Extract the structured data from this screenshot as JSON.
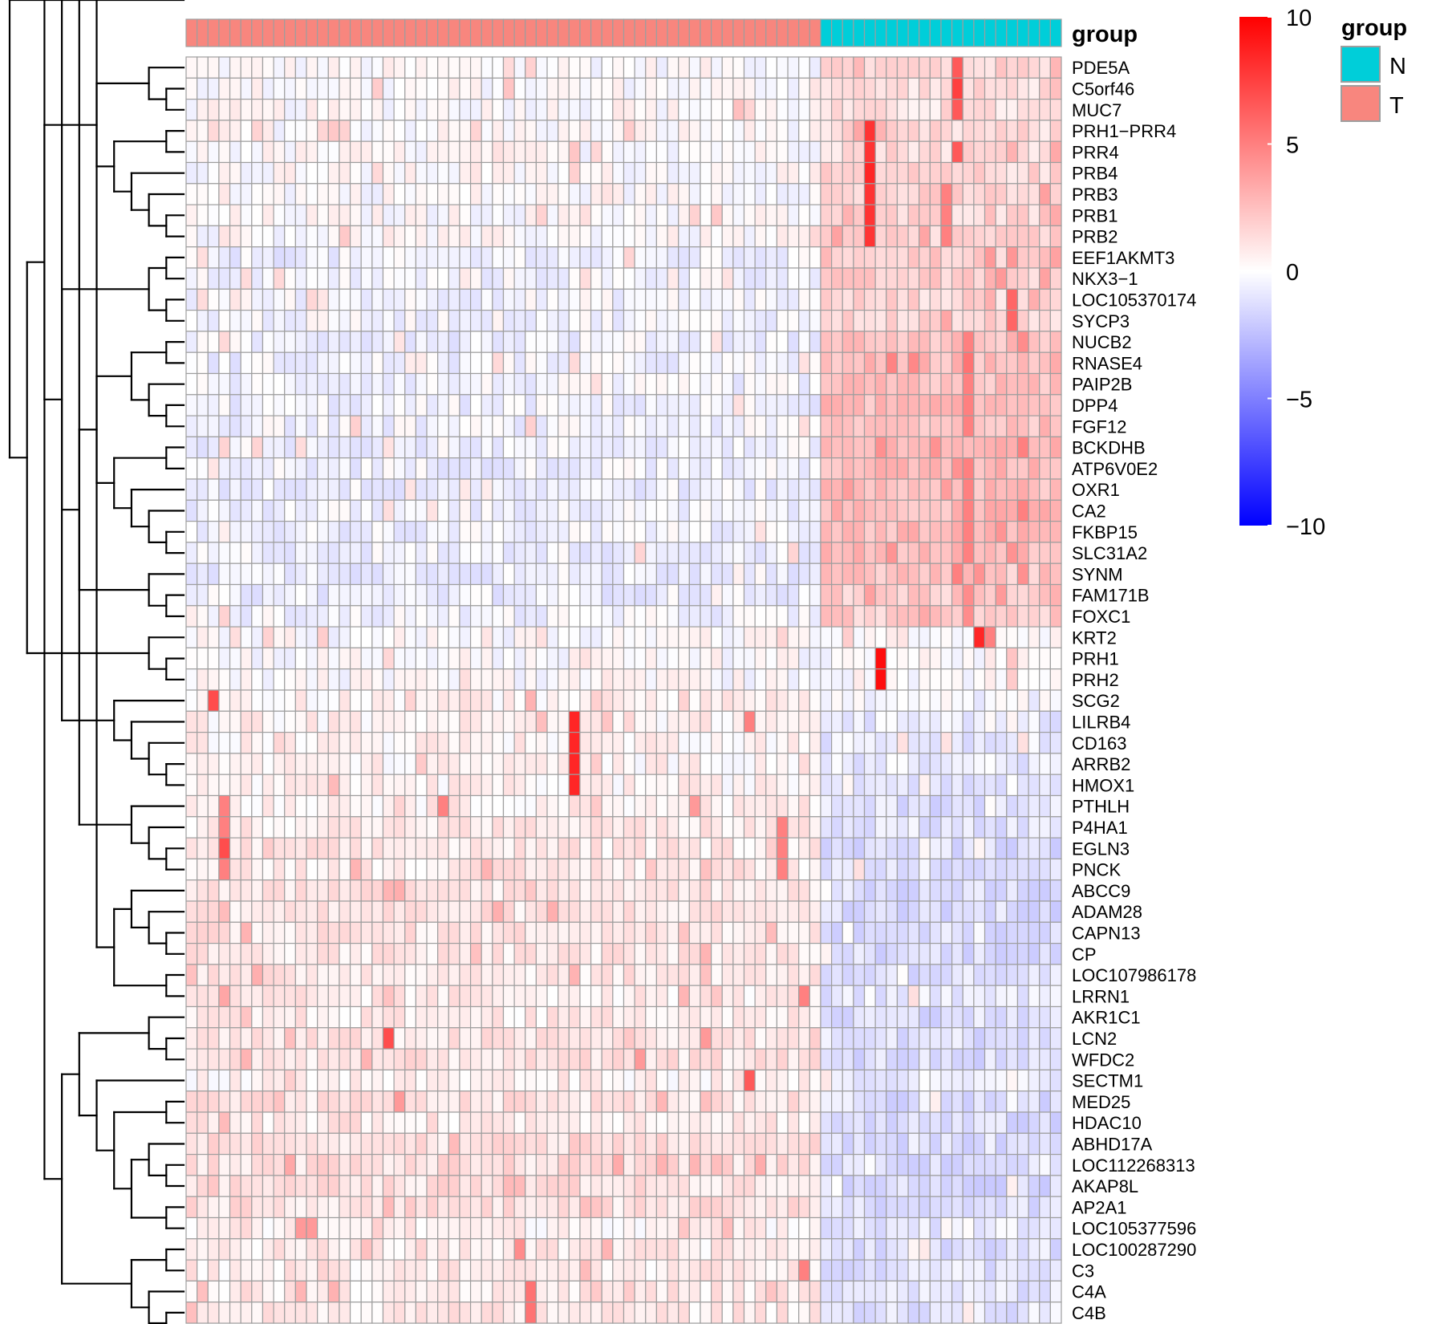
{
  "chart_data": {
    "type": "heatmap",
    "annotation_title": "group",
    "legend_title": "group",
    "groups": [
      {
        "name": "N",
        "color": "#00CED9"
      },
      {
        "name": "T",
        "color": "#F8867E"
      }
    ],
    "columns": {
      "tumor_count": 58,
      "normal_count": 22
    },
    "scale": {
      "min": -10,
      "max": 10,
      "ticks": [
        "10",
        "5",
        "0",
        "−5",
        "−10"
      ],
      "low_color": "#0000FF",
      "mid_color": "#FFFFFF",
      "high_color": "#FF0000"
    },
    "grid_color": "#9E9E9E",
    "rows": [
      {
        "name": "PDE5A",
        "t": 0.05,
        "n": 1.6,
        "hot": [
          [
            70,
            6.5
          ]
        ]
      },
      {
        "name": "C5orf46",
        "t": 0.05,
        "n": 1.3,
        "hot": [
          [
            70,
            7.5
          ]
        ]
      },
      {
        "name": "MUC7",
        "t": 0.1,
        "n": 1.0,
        "hot": [
          [
            50,
            2.5
          ],
          [
            70,
            6.5
          ]
        ]
      },
      {
        "name": "PRH1−PRR4",
        "t": 0.1,
        "n": 1.3,
        "hot": [
          [
            62,
            8
          ],
          [
            63,
            3
          ]
        ]
      },
      {
        "name": "PRR4",
        "t": 0.1,
        "n": 1.5,
        "hot": [
          [
            62,
            8
          ],
          [
            70,
            6.5
          ]
        ]
      },
      {
        "name": "PRB4",
        "t": 0.05,
        "n": 1.5,
        "hot": [
          [
            62,
            8.5
          ]
        ]
      },
      {
        "name": "PRB3",
        "t": 0.05,
        "n": 1.6,
        "hot": [
          [
            62,
            8
          ],
          [
            69,
            5
          ]
        ]
      },
      {
        "name": "PRB1",
        "t": 0.05,
        "n": 1.6,
        "hot": [
          [
            62,
            8
          ],
          [
            69,
            5
          ]
        ]
      },
      {
        "name": "PRB2",
        "t": 0.05,
        "n": 1.7,
        "hot": [
          [
            62,
            8
          ],
          [
            69,
            5
          ]
        ]
      },
      {
        "name": "EEF1AKMT3",
        "t": -0.6,
        "n": 2.0,
        "hot": [
          [
            73,
            4
          ]
        ]
      },
      {
        "name": "NKX3−1",
        "t": -0.4,
        "n": 1.8,
        "hot": [
          [
            74,
            4
          ]
        ]
      },
      {
        "name": "LOC105370174",
        "t": -0.3,
        "n": 1.6,
        "hot": [
          [
            75,
            6
          ]
        ]
      },
      {
        "name": "SYCP3",
        "t": -0.3,
        "n": 1.6,
        "hot": [
          [
            75,
            6
          ]
        ]
      },
      {
        "name": "NUCB2",
        "t": -0.5,
        "n": 2.4,
        "hot": [
          [
            71,
            5
          ],
          [
            76,
            4.5
          ]
        ]
      },
      {
        "name": "RNASE4",
        "t": -0.5,
        "n": 2.6,
        "hot": [
          [
            71,
            5.5
          ]
        ]
      },
      {
        "name": "PAIP2B",
        "t": -0.4,
        "n": 2.4,
        "hot": [
          [
            71,
            5
          ]
        ]
      },
      {
        "name": "DPP4",
        "t": -0.5,
        "n": 2.6,
        "hot": [
          [
            71,
            5
          ]
        ]
      },
      {
        "name": "FGF12",
        "t": -0.4,
        "n": 2.4,
        "hot": [
          [
            71,
            5
          ]
        ]
      },
      {
        "name": "BCKDHB",
        "t": -0.5,
        "n": 2.7,
        "hot": [
          [
            76,
            5
          ]
        ]
      },
      {
        "name": "ATP6V0E2",
        "t": -0.5,
        "n": 2.7,
        "hot": [
          [
            71,
            5
          ]
        ]
      },
      {
        "name": "OXR1",
        "t": -0.6,
        "n": 2.6,
        "hot": [
          [
            71,
            5
          ]
        ]
      },
      {
        "name": "CA2",
        "t": -0.5,
        "n": 2.7,
        "hot": [
          [
            71,
            5
          ],
          [
            76,
            5
          ]
        ]
      },
      {
        "name": "FKBP15",
        "t": -0.5,
        "n": 2.6,
        "hot": [
          [
            71,
            5
          ]
        ]
      },
      {
        "name": "SLC31A2",
        "t": -0.5,
        "n": 2.6,
        "hot": [
          [
            71,
            5
          ]
        ]
      },
      {
        "name": "SYNM",
        "t": -0.6,
        "n": 2.2,
        "hot": [
          [
            70,
            5
          ]
        ]
      },
      {
        "name": "FAM171B",
        "t": -0.6,
        "n": 2.0,
        "hot": [
          [
            71,
            4.5
          ]
        ]
      },
      {
        "name": "FOXC1",
        "t": -0.4,
        "n": 2.0,
        "hot": [
          [
            71,
            4.5
          ]
        ]
      },
      {
        "name": "KRT2",
        "t": 0.0,
        "n": 0.3,
        "hot": [
          [
            72,
            8.5
          ],
          [
            73,
            5
          ]
        ]
      },
      {
        "name": "PRH1",
        "t": 0.0,
        "n": 0.1,
        "hot": [
          [
            63,
            9.5
          ]
        ]
      },
      {
        "name": "PRH2",
        "t": 0.0,
        "n": 0.1,
        "hot": [
          [
            63,
            9.5
          ]
        ]
      },
      {
        "name": "SCG2",
        "t": 0.5,
        "n": -0.3,
        "hot": [
          [
            2,
            7
          ],
          [
            31,
            3
          ]
        ]
      },
      {
        "name": "LILRB4",
        "t": 0.5,
        "n": -0.8,
        "hot": [
          [
            35,
            8.5
          ],
          [
            51,
            5
          ]
        ]
      },
      {
        "name": "CD163",
        "t": 0.5,
        "n": -0.8,
        "hot": [
          [
            35,
            8.5
          ]
        ]
      },
      {
        "name": "ARRB2",
        "t": 0.4,
        "n": -0.8,
        "hot": [
          [
            35,
            8.5
          ],
          [
            37,
            2
          ]
        ]
      },
      {
        "name": "HMOX1",
        "t": 0.4,
        "n": -0.8,
        "hot": [
          [
            35,
            8.5
          ]
        ]
      },
      {
        "name": "PTHLH",
        "t": 0.6,
        "n": -1.2,
        "hot": [
          [
            3,
            5
          ],
          [
            23,
            5
          ],
          [
            46,
            4
          ]
        ]
      },
      {
        "name": "P4HA1",
        "t": 0.8,
        "n": -1.2,
        "hot": [
          [
            3,
            5
          ],
          [
            54,
            5
          ]
        ]
      },
      {
        "name": "EGLN3",
        "t": 0.8,
        "n": -1.3,
        "hot": [
          [
            3,
            7
          ],
          [
            54,
            5
          ]
        ]
      },
      {
        "name": "PNCK",
        "t": 0.8,
        "n": -1.0,
        "hot": [
          [
            3,
            5
          ],
          [
            54,
            5
          ]
        ]
      },
      {
        "name": "ABCC9",
        "t": 1.0,
        "n": -1.4,
        "hot": []
      },
      {
        "name": "ADAM28",
        "t": 1.0,
        "n": -1.4,
        "hot": []
      },
      {
        "name": "CAPN13",
        "t": 1.0,
        "n": -1.3,
        "hot": [
          [
            5,
            3
          ]
        ]
      },
      {
        "name": "CP",
        "t": 0.9,
        "n": -1.3,
        "hot": []
      },
      {
        "name": "LOC107986178",
        "t": 0.9,
        "n": -1.2,
        "hot": []
      },
      {
        "name": "LRRN1",
        "t": 0.7,
        "n": -1.0,
        "hot": [
          [
            3,
            3.5
          ],
          [
            56,
            5
          ]
        ]
      },
      {
        "name": "AKR1C1",
        "t": 0.7,
        "n": -1.2,
        "hot": []
      },
      {
        "name": "LCN2",
        "t": 0.9,
        "n": -1.2,
        "hot": [
          [
            18,
            7
          ],
          [
            47,
            4
          ]
        ]
      },
      {
        "name": "WFDC2",
        "t": 1.0,
        "n": -1.3,
        "hot": [
          [
            16,
            3
          ],
          [
            41,
            4
          ]
        ]
      },
      {
        "name": "SECTM1",
        "t": 0.5,
        "n": -0.8,
        "hot": [
          [
            51,
            6.5
          ]
        ]
      },
      {
        "name": "MED25",
        "t": 1.0,
        "n": -1.3,
        "hot": [
          [
            19,
            4
          ]
        ]
      },
      {
        "name": "HDAC10",
        "t": 0.8,
        "n": -1.4,
        "hot": []
      },
      {
        "name": "ABHD17A",
        "t": 1.2,
        "n": -1.3,
        "hot": []
      },
      {
        "name": "LOC112268313",
        "t": 1.2,
        "n": -1.3,
        "hot": []
      },
      {
        "name": "AKAP8L",
        "t": 1.1,
        "n": -1.4,
        "hot": []
      },
      {
        "name": "AP2A1",
        "t": 1.1,
        "n": -1.3,
        "hot": []
      },
      {
        "name": "LOC105377596",
        "t": 0.5,
        "n": -0.8,
        "hot": [
          [
            10,
            4
          ],
          [
            11,
            4
          ]
        ]
      },
      {
        "name": "LOC100287290",
        "t": 0.7,
        "n": -1.2,
        "hot": [
          [
            30,
            4.5
          ]
        ]
      },
      {
        "name": "C3",
        "t": 0.7,
        "n": -1.0,
        "hot": [
          [
            56,
            5
          ]
        ]
      },
      {
        "name": "C4A",
        "t": 0.8,
        "n": -1.0,
        "hot": [
          [
            31,
            5.5
          ]
        ]
      },
      {
        "name": "C4B",
        "t": 0.8,
        "n": -1.0,
        "hot": [
          [
            31,
            5.5
          ]
        ]
      }
    ]
  }
}
